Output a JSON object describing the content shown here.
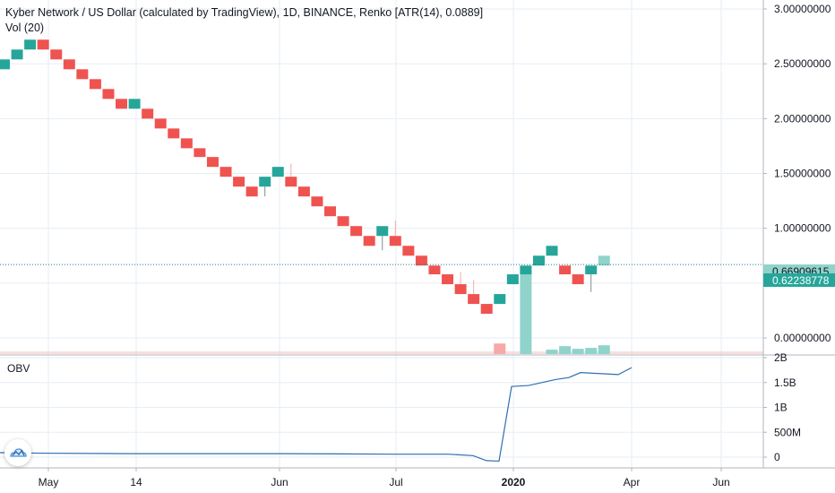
{
  "header": {
    "title": "Kyber Network / US Dollar (calculated by TradingView), 1D, BINANCE, Renko [ATR(14), 0.0889]",
    "volume_label": "Vol (20)"
  },
  "obv_label": "OBV",
  "colors": {
    "up": "#26a69a",
    "down": "#ef5350",
    "up_volume": "#8fd3cb",
    "down_volume": "#f7a9a7",
    "obv_line": "#2e6fb0",
    "price_line": "#1e7f8a",
    "grid": "#e6eef5",
    "axis_text": "#131722"
  },
  "chart_data": [
    {
      "type": "renko",
      "title": "Kyber Network / US Dollar (calculated by TradingView), 1D, BINANCE, Renko [ATR(14), 0.0889]",
      "box_size": 0.0889,
      "x_tick_labels": [
        "May",
        "14",
        "Jun",
        "Jul",
        "2020",
        "Apr",
        "Jun"
      ],
      "y_tick_labels": [
        "3.00000000",
        "2.50000000",
        "2.00000000",
        "1.50000000",
        "1.00000000",
        "0.00000000"
      ],
      "ylim": [
        -0.12,
        3.05
      ],
      "grid": true,
      "bricks": [
        {
          "dir": "up",
          "open": 2.45,
          "close": 2.54
        },
        {
          "dir": "up",
          "open": 2.54,
          "close": 2.63
        },
        {
          "dir": "up",
          "open": 2.63,
          "close": 2.72
        },
        {
          "dir": "down",
          "open": 2.72,
          "close": 2.63
        },
        {
          "dir": "down",
          "open": 2.63,
          "close": 2.54
        },
        {
          "dir": "down",
          "open": 2.54,
          "close": 2.45
        },
        {
          "dir": "down",
          "open": 2.45,
          "close": 2.36
        },
        {
          "dir": "down",
          "open": 2.36,
          "close": 2.27
        },
        {
          "dir": "down",
          "open": 2.27,
          "close": 2.18
        },
        {
          "dir": "down",
          "open": 2.18,
          "close": 2.09
        },
        {
          "dir": "up",
          "open": 2.09,
          "close": 2.18
        },
        {
          "dir": "down",
          "open": 2.09,
          "close": 2.0
        },
        {
          "dir": "down",
          "open": 2.0,
          "close": 1.91
        },
        {
          "dir": "down",
          "open": 1.91,
          "close": 1.82
        },
        {
          "dir": "down",
          "open": 1.82,
          "close": 1.73
        },
        {
          "dir": "down",
          "open": 1.73,
          "close": 1.65
        },
        {
          "dir": "down",
          "open": 1.65,
          "close": 1.56
        },
        {
          "dir": "down",
          "open": 1.56,
          "close": 1.47
        },
        {
          "dir": "down",
          "open": 1.47,
          "close": 1.38
        },
        {
          "dir": "down",
          "open": 1.38,
          "close": 1.29
        },
        {
          "dir": "up",
          "open": 1.38,
          "close": 1.47,
          "wick_low": 1.29
        },
        {
          "dir": "up",
          "open": 1.47,
          "close": 1.56
        },
        {
          "dir": "down",
          "open": 1.47,
          "close": 1.38,
          "wick_high": 1.59
        },
        {
          "dir": "down",
          "open": 1.38,
          "close": 1.29
        },
        {
          "dir": "down",
          "open": 1.29,
          "close": 1.2
        },
        {
          "dir": "down",
          "open": 1.2,
          "close": 1.11
        },
        {
          "dir": "down",
          "open": 1.11,
          "close": 1.02
        },
        {
          "dir": "down",
          "open": 1.02,
          "close": 0.93
        },
        {
          "dir": "down",
          "open": 0.93,
          "close": 0.84
        },
        {
          "dir": "up",
          "open": 0.93,
          "close": 1.02,
          "wick_low": 0.8
        },
        {
          "dir": "down",
          "open": 0.93,
          "close": 0.84,
          "wick_high": 1.07
        },
        {
          "dir": "down",
          "open": 0.84,
          "close": 0.75
        },
        {
          "dir": "down",
          "open": 0.75,
          "close": 0.66
        },
        {
          "dir": "down",
          "open": 0.66,
          "close": 0.58
        },
        {
          "dir": "down",
          "open": 0.58,
          "close": 0.49
        },
        {
          "dir": "down",
          "open": 0.49,
          "close": 0.4,
          "wick_high": 0.6
        },
        {
          "dir": "down",
          "open": 0.4,
          "close": 0.31,
          "wick_high": 0.53
        },
        {
          "dir": "down",
          "open": 0.31,
          "close": 0.22
        },
        {
          "dir": "up",
          "open": 0.31,
          "close": 0.4
        },
        {
          "dir": "up",
          "open": 0.49,
          "close": 0.58
        },
        {
          "dir": "up",
          "open": 0.58,
          "close": 0.66
        },
        {
          "dir": "up",
          "open": 0.66,
          "close": 0.75
        },
        {
          "dir": "up",
          "open": 0.75,
          "close": 0.84
        },
        {
          "dir": "down",
          "open": 0.66,
          "close": 0.58
        },
        {
          "dir": "down",
          "open": 0.58,
          "close": 0.49
        },
        {
          "dir": "up",
          "open": 0.58,
          "close": 0.66,
          "wick_low": 0.42
        },
        {
          "dir": "up",
          "open": 0.66,
          "close": 0.75,
          "muted": true
        }
      ],
      "current_price_labels": [
        {
          "text": "0.66909615",
          "value": 0.66909615,
          "style": "light"
        },
        {
          "text": "0.62238778",
          "value": 0.62238778,
          "style": "solid"
        }
      ],
      "volume": [
        {
          "index": 38,
          "dir": "down",
          "value": 0.12
        },
        {
          "index": 40,
          "dir": "up",
          "value": 1.0
        },
        {
          "index": 42,
          "dir": "up",
          "value": 0.05
        },
        {
          "index": 43,
          "dir": "up",
          "value": 0.09
        },
        {
          "index": 44,
          "dir": "up",
          "value": 0.06
        },
        {
          "index": 45,
          "dir": "up",
          "value": 0.07
        },
        {
          "index": 46,
          "dir": "up",
          "value": 0.1
        }
      ]
    },
    {
      "type": "line",
      "title": "OBV",
      "y_tick_labels": [
        "2B",
        "1.5B",
        "1B",
        "500M",
        "0"
      ],
      "ylim": [
        -0.15,
        2.0
      ],
      "series": [
        {
          "points": [
            [
              0,
              0.09
            ],
            [
              45,
              0.08
            ],
            [
              150,
              0.07
            ],
            [
              320,
              0.07
            ],
            [
              440,
              0.06
            ],
            [
              500,
              0.06
            ],
            [
              528,
              0.03
            ],
            [
              543,
              -0.07
            ],
            [
              557,
              -0.08
            ],
            [
              571,
              1.42
            ],
            [
              590,
              1.44
            ],
            [
              620,
              1.56
            ],
            [
              635,
              1.6
            ],
            [
              648,
              1.7
            ],
            [
              690,
              1.66
            ],
            [
              705,
              1.8
            ]
          ]
        }
      ]
    }
  ]
}
